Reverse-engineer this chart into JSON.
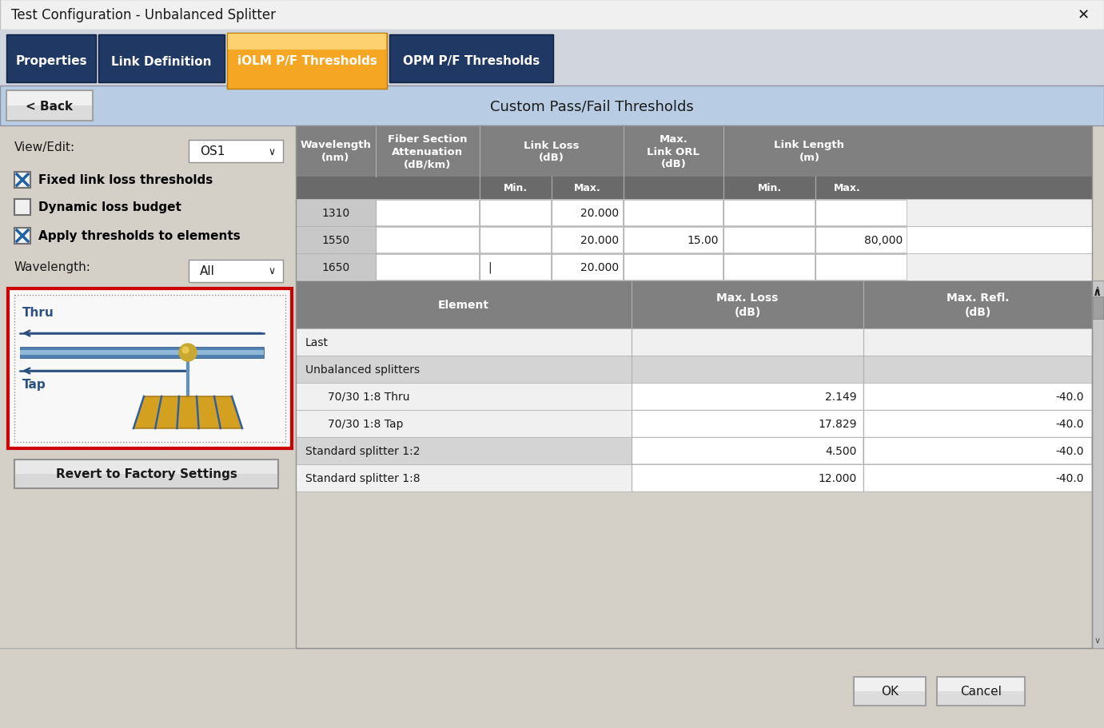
{
  "title": "Test Configuration - Unbalanced Splitter",
  "tabs": [
    "Properties",
    "Link Definition",
    "iOLM P/F Thresholds",
    "OPM P/F Thresholds"
  ],
  "active_tab": 2,
  "back_button": "< Back",
  "panel_title": "Custom Pass/Fail Thresholds",
  "view_edit_label": "View/Edit:",
  "view_edit_value": "OS1",
  "wavelength_label": "Wavelength:",
  "wavelength_value": "All",
  "checkboxes": [
    {
      "label": "Fixed link loss thresholds",
      "checked": true
    },
    {
      "label": "Dynamic loss budget",
      "checked": false
    },
    {
      "label": "Apply thresholds to elements",
      "checked": true
    }
  ],
  "revert_button": "Revert to Factory Settings",
  "ok_button": "OK",
  "cancel_button": "Cancel",
  "upper_table_rows": [
    [
      "1310",
      "",
      "",
      "20.000",
      "",
      "",
      ""
    ],
    [
      "1550",
      "",
      "",
      "20.000",
      "15.00",
      "",
      "80,000"
    ],
    [
      "1650",
      "",
      "|",
      "20.000",
      "",
      "",
      ""
    ]
  ],
  "lower_table_rows": [
    {
      "label": "Last",
      "max_loss": "",
      "max_refl": "",
      "indent": false,
      "bg": "light"
    },
    {
      "label": "Unbalanced splitters",
      "max_loss": "",
      "max_refl": "",
      "indent": false,
      "bg": "medium"
    },
    {
      "label": "70/30 1:8 Thru",
      "max_loss": "2.149",
      "max_refl": "-40.0",
      "indent": true,
      "bg": "light"
    },
    {
      "label": "70/30 1:8 Tap",
      "max_loss": "17.829",
      "max_refl": "-40.0",
      "indent": true,
      "bg": "light"
    },
    {
      "label": "Standard splitter 1:2",
      "max_loss": "4.500",
      "max_refl": "-40.0",
      "indent": false,
      "bg": "medium"
    },
    {
      "label": "Standard splitter 1:8",
      "max_loss": "12.000",
      "max_refl": "-40.0",
      "indent": false,
      "bg": "light"
    }
  ],
  "colors": {
    "window_bg": "#d4d0c8",
    "title_bg": "#f0f0f0",
    "tab_bar_bg": "#d0d5de",
    "tab_inactive": "#1f3864",
    "tab_active_orange": "#f5a623",
    "tab_text": "#ffffff",
    "header_bar_bg": "#b8cce4",
    "back_btn_bg": "#f0f0f0",
    "back_btn_border": "#a0a0a0",
    "table_header_bg": "#808080",
    "table_subheader_bg": "#707070",
    "table_header_text": "#ffffff",
    "row_light": "#f0f0f0",
    "row_medium": "#d4d4d4",
    "row_white": "#ffffff",
    "wl_col_bg": "#c8c8c8",
    "cell_white": "#ffffff",
    "grid": "#b0b0b0",
    "text": "#1a1a1a",
    "text_bold": "#000000",
    "scrollbar_bg": "#c8c8c8",
    "scrollbar_thumb": "#a0a0a0",
    "btn_bg": "#f0f0f0",
    "btn_border": "#a0a0a0",
    "diagram_bg": "#f8f8f8",
    "diagram_red_border": "#cc0000",
    "diagram_dot_border": "#909090",
    "fiber_blue": "#5080b0",
    "fiber_light": "#90b8d8",
    "arrow_blue": "#2a5080",
    "gold_circle": "#c8a830",
    "gold_light": "#e8c850",
    "splitter_pole": "#6090c0",
    "splitter_trap": "#d4a020",
    "splitter_lines": "#3060a0"
  }
}
